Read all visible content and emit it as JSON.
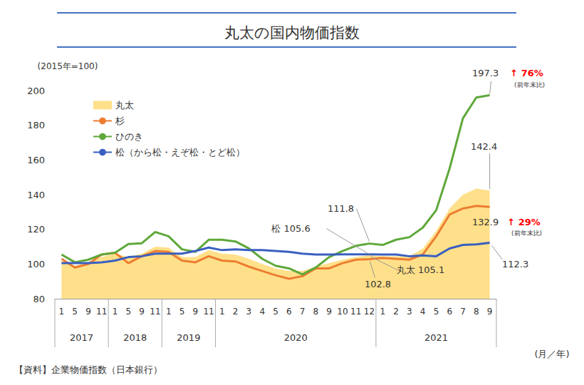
{
  "chart_data": {
    "type": "line",
    "title": "丸太の国内物価指数",
    "ylabel": "(2015年=100)",
    "xlabel": "(月／年)",
    "source": "【資料】企業物価指数（日本銀行）",
    "categories": [
      "1",
      "5",
      "9",
      "11",
      "1",
      "5",
      "9",
      "11",
      "1",
      "5",
      "9",
      "11",
      "1",
      "2",
      "3",
      "4",
      "5",
      "6",
      "7",
      "8",
      "9",
      "10",
      "11",
      "12",
      "1",
      "2",
      "3",
      "4",
      "5",
      "6",
      "7",
      "8",
      "9"
    ],
    "x_groups": [
      {
        "label": "2017",
        "span": 4
      },
      {
        "label": "2018",
        "span": 4
      },
      {
        "label": "2019",
        "span": 4
      },
      {
        "label": "2020",
        "span": 12
      },
      {
        "label": "2021",
        "span": 9
      }
    ],
    "series": [
      {
        "name": "丸太",
        "type": "area",
        "color": "#ffe08a",
        "marker": "none",
        "values": [
          102,
          99,
          101,
          104,
          106,
          104,
          106,
          110,
          109.5,
          104,
          104,
          108,
          106,
          105.5,
          103,
          100,
          97.5,
          96,
          96,
          98.5,
          100.5,
          102.5,
          104,
          105.1,
          104.5,
          104.5,
          104.5,
          109,
          119,
          132,
          140,
          143.5,
          142.4
        ]
      },
      {
        "name": "杉",
        "type": "line",
        "color": "#ed7d31",
        "marker": "none",
        "line_style": "solid",
        "values": [
          103,
          98,
          100,
          105.5,
          106.5,
          100.5,
          104.5,
          107.5,
          107,
          102,
          101,
          104.5,
          102,
          101.5,
          98.5,
          96,
          93.5,
          91.5,
          93,
          97.5,
          97.5,
          100.5,
          102.5,
          102.8,
          103.5,
          103,
          102.5,
          105.5,
          116,
          128.5,
          132,
          133.5,
          132.9
        ]
      },
      {
        "name": "ひのき",
        "type": "line",
        "color": "#5fa83a",
        "marker": "none",
        "line_style": "solid",
        "values": [
          105.5,
          101,
          102.5,
          105.5,
          106.5,
          111.5,
          112,
          118.5,
          116,
          108.5,
          107,
          114,
          114,
          113,
          109,
          103,
          99,
          97.5,
          94,
          98,
          104,
          107.5,
          110.5,
          111.8,
          111,
          114,
          115.5,
          121,
          131,
          155,
          184,
          196,
          197.3
        ]
      },
      {
        "name": "松（から松・えぞ松・とど松）",
        "type": "line",
        "color": "#3a5fc0",
        "marker": "none",
        "line_style": "solid",
        "values": [
          100.5,
          100.5,
          100.5,
          101,
          102,
          104,
          104.5,
          106,
          106,
          106,
          107.5,
          109.5,
          108,
          108.5,
          108,
          108,
          107.5,
          107,
          106,
          105.5,
          105.5,
          105.6,
          105.6,
          105.6,
          105.5,
          105.5,
          104.5,
          105,
          104.5,
          109,
          111,
          111.3,
          112.3
        ]
      }
    ],
    "annotations": [
      {
        "text": "197.3",
        "series": "ひのき",
        "index": 32
      },
      {
        "text": "↑ 76%",
        "note": "(前年末比)",
        "series": "ひのき",
        "index": 32,
        "color": "#ff0000"
      },
      {
        "text": "142.4",
        "series": "丸太",
        "index": 32
      },
      {
        "text": "132.9",
        "series": "杉",
        "index": 32
      },
      {
        "text": "↑ 29%",
        "note": "(前年末比)",
        "series": "杉",
        "index": 32,
        "color": "#ff0000"
      },
      {
        "text": "111.8",
        "series": "ひのき",
        "index": 23
      },
      {
        "text": "松 105.6",
        "series": "松（から松・えぞ松・とど松）",
        "index": 23
      },
      {
        "text": "丸太 105.1",
        "series": "丸太",
        "index": 23
      },
      {
        "text": "102.8",
        "series": "杉",
        "index": 23
      },
      {
        "text": "112.3",
        "series": "松（から松・えぞ松・とど松）",
        "index": 32
      }
    ],
    "ylim": [
      80,
      200
    ],
    "yticks": [
      80,
      100,
      120,
      140,
      160,
      180,
      200
    ],
    "grid": false,
    "legend": "upper left"
  }
}
